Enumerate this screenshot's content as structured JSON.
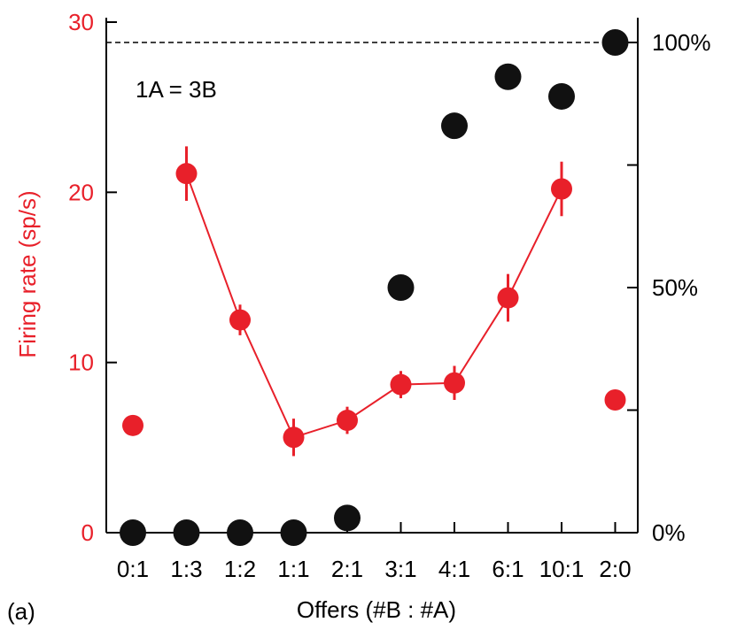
{
  "panel_label": "(a)",
  "annotation": "1A = 3B",
  "colors": {
    "firing": "#e8202a",
    "choice": "#111111",
    "axis": "#000000"
  },
  "chart_data": {
    "type": "scatter",
    "categories": [
      "0:1",
      "1:3",
      "1:2",
      "1:1",
      "2:1",
      "3:1",
      "4:1",
      "6:1",
      "10:1",
      "2:0"
    ],
    "xlabel": "Offers (#B : #A)",
    "ylabel": "Firing rate (sp/s)",
    "ylim": [
      0,
      30
    ],
    "y_ticks": [
      "0",
      "10",
      "20",
      "30"
    ],
    "y2lim": [
      0,
      100
    ],
    "y2_ticks": [
      "0%",
      "50%",
      "100%"
    ],
    "reference_line": {
      "y2": 100,
      "style": "dashed"
    },
    "series": [
      {
        "axis": "left",
        "marker": "circle",
        "values": [
          6.3,
          21.1,
          12.5,
          5.6,
          6.6,
          8.7,
          8.8,
          13.8,
          20.2,
          7.8
        ],
        "errors": [
          0.4,
          1.6,
          0.9,
          1.1,
          0.8,
          0.8,
          1.0,
          1.4,
          1.6,
          0.6
        ],
        "connected": [
          false,
          true,
          true,
          true,
          true,
          true,
          true,
          true,
          true,
          false
        ]
      },
      {
        "axis": "right",
        "marker": "circle",
        "values": [
          0,
          0,
          0,
          0,
          3,
          50,
          83,
          93,
          89,
          100
        ]
      }
    ]
  }
}
